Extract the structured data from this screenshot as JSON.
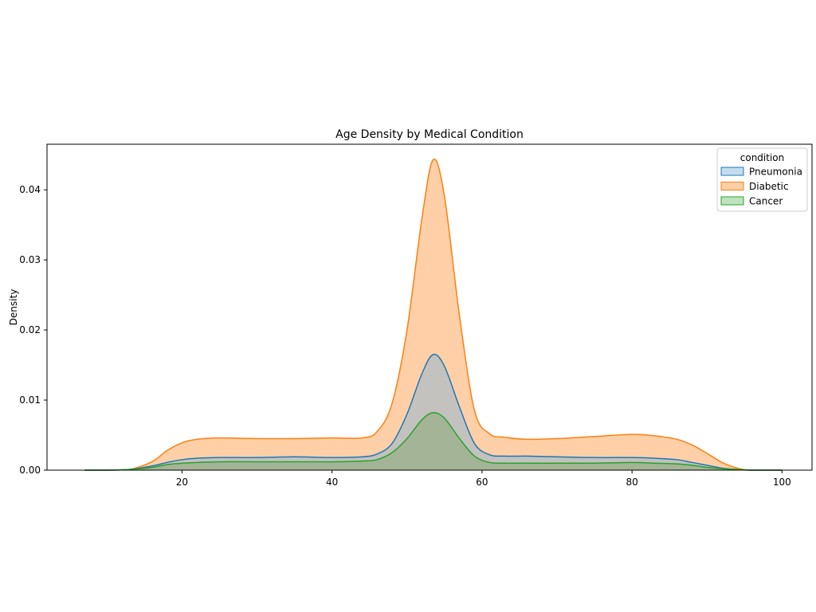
{
  "chart_data": {
    "type": "area",
    "title": "Age Density by Medical Condition",
    "xlabel": "",
    "ylabel": "Density",
    "xlim": [
      2,
      104
    ],
    "ylim": [
      0,
      0.0465
    ],
    "x_ticks": [
      20,
      40,
      60,
      80,
      100
    ],
    "y_ticks": [
      0.0,
      0.01,
      0.02,
      0.03,
      0.04
    ],
    "y_tick_labels": [
      "0.00",
      "0.01",
      "0.02",
      "0.03",
      "0.04"
    ],
    "grid": false,
    "legend": {
      "title": "condition",
      "placement": "top-right"
    },
    "x": [
      7,
      10,
      13,
      16,
      18,
      20,
      22,
      25,
      30,
      35,
      40,
      44,
      46,
      48,
      50,
      52,
      53.5,
      55,
      57,
      59,
      61,
      63,
      66,
      70,
      75,
      80,
      83,
      86,
      88,
      90,
      92,
      94,
      96,
      100
    ],
    "series": [
      {
        "name": "Diabetic",
        "color": "#ff7f0e",
        "fill": "#ffd0a8",
        "values": [
          0.0,
          0.0,
          0.0001,
          0.0012,
          0.0028,
          0.0039,
          0.0044,
          0.0046,
          0.0045,
          0.0045,
          0.0046,
          0.0046,
          0.0055,
          0.0095,
          0.02,
          0.036,
          0.0443,
          0.039,
          0.022,
          0.0085,
          0.0052,
          0.0047,
          0.0044,
          0.0045,
          0.0048,
          0.0051,
          0.0049,
          0.0044,
          0.0036,
          0.0024,
          0.0011,
          0.0003,
          0.0,
          0.0
        ]
      },
      {
        "name": "Pneumonia",
        "color": "#1f77b4",
        "fill": "#c3c2be",
        "values": [
          0.0,
          0.0,
          0.0001,
          0.0006,
          0.0011,
          0.0015,
          0.0017,
          0.0018,
          0.0018,
          0.0019,
          0.0018,
          0.0019,
          0.0023,
          0.0038,
          0.008,
          0.0138,
          0.0165,
          0.0148,
          0.009,
          0.0038,
          0.0022,
          0.002,
          0.002,
          0.0019,
          0.0018,
          0.0018,
          0.0017,
          0.0015,
          0.0011,
          0.0007,
          0.0003,
          0.0001,
          0.0,
          0.0
        ]
      },
      {
        "name": "Cancer",
        "color": "#2ca02c",
        "fill": "#a3b596",
        "values": [
          0.0,
          0.0,
          0.0001,
          0.0004,
          0.0008,
          0.001,
          0.0011,
          0.0012,
          0.0012,
          0.0012,
          0.0012,
          0.0013,
          0.0015,
          0.0025,
          0.0045,
          0.0072,
          0.0082,
          0.0074,
          0.0045,
          0.002,
          0.0011,
          0.001,
          0.001,
          0.001,
          0.001,
          0.0011,
          0.001,
          0.0009,
          0.0007,
          0.0004,
          0.0002,
          0.0001,
          0.0,
          0.0
        ]
      }
    ],
    "draw_order": [
      "Diabetic",
      "Pneumonia",
      "Cancer"
    ],
    "legend_order": [
      "Pneumonia",
      "Diabetic",
      "Cancer"
    ]
  }
}
